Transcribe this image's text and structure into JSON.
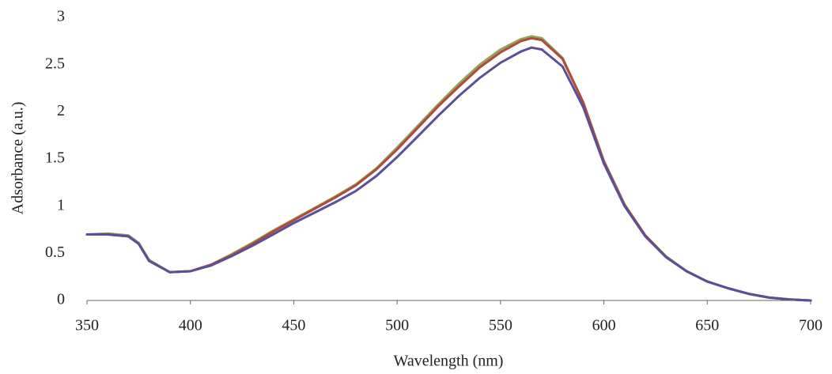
{
  "chart_data": {
    "type": "line",
    "x_label": "Wavelength (nm)",
    "y_label": "Adsorbance (a.u.)",
    "xlim": [
      350,
      700
    ],
    "xticks": [
      350,
      400,
      450,
      500,
      550,
      600,
      650,
      700
    ],
    "ylim": [
      0,
      3
    ],
    "yticks": [
      0,
      0.5,
      1,
      1.5,
      2,
      2.5,
      3
    ],
    "grid": false,
    "x": [
      350,
      360,
      370,
      375,
      380,
      390,
      400,
      410,
      420,
      430,
      440,
      450,
      460,
      470,
      480,
      490,
      500,
      510,
      520,
      530,
      540,
      550,
      560,
      565,
      570,
      580,
      590,
      600,
      610,
      620,
      630,
      640,
      650,
      660,
      670,
      680,
      690,
      700
    ],
    "series": [
      {
        "color": "#8fa35c",
        "values": [
          0.7,
          0.71,
          0.69,
          0.61,
          0.43,
          0.3,
          0.31,
          0.38,
          0.49,
          0.61,
          0.74,
          0.86,
          0.98,
          1.1,
          1.23,
          1.4,
          1.62,
          1.85,
          2.08,
          2.3,
          2.5,
          2.66,
          2.77,
          2.8,
          2.78,
          2.57,
          2.1,
          1.48,
          1.02,
          0.69,
          0.47,
          0.31,
          0.2,
          0.13,
          0.07,
          0.03,
          0.01,
          0.0
        ]
      },
      {
        "color": "#b04a3a",
        "values": [
          0.7,
          0.7,
          0.68,
          0.6,
          0.42,
          0.3,
          0.31,
          0.38,
          0.48,
          0.6,
          0.73,
          0.85,
          0.97,
          1.09,
          1.22,
          1.39,
          1.6,
          1.83,
          2.06,
          2.27,
          2.47,
          2.63,
          2.75,
          2.78,
          2.76,
          2.56,
          2.1,
          1.47,
          1.01,
          0.69,
          0.46,
          0.31,
          0.2,
          0.13,
          0.07,
          0.03,
          0.01,
          0.0
        ]
      },
      {
        "color": "#5b4e9a",
        "values": [
          0.7,
          0.7,
          0.68,
          0.6,
          0.42,
          0.3,
          0.31,
          0.37,
          0.47,
          0.58,
          0.7,
          0.82,
          0.93,
          1.04,
          1.16,
          1.32,
          1.52,
          1.74,
          1.96,
          2.17,
          2.36,
          2.52,
          2.64,
          2.68,
          2.66,
          2.48,
          2.05,
          1.45,
          1.0,
          0.68,
          0.46,
          0.31,
          0.2,
          0.13,
          0.07,
          0.03,
          0.01,
          0.0
        ]
      }
    ]
  }
}
